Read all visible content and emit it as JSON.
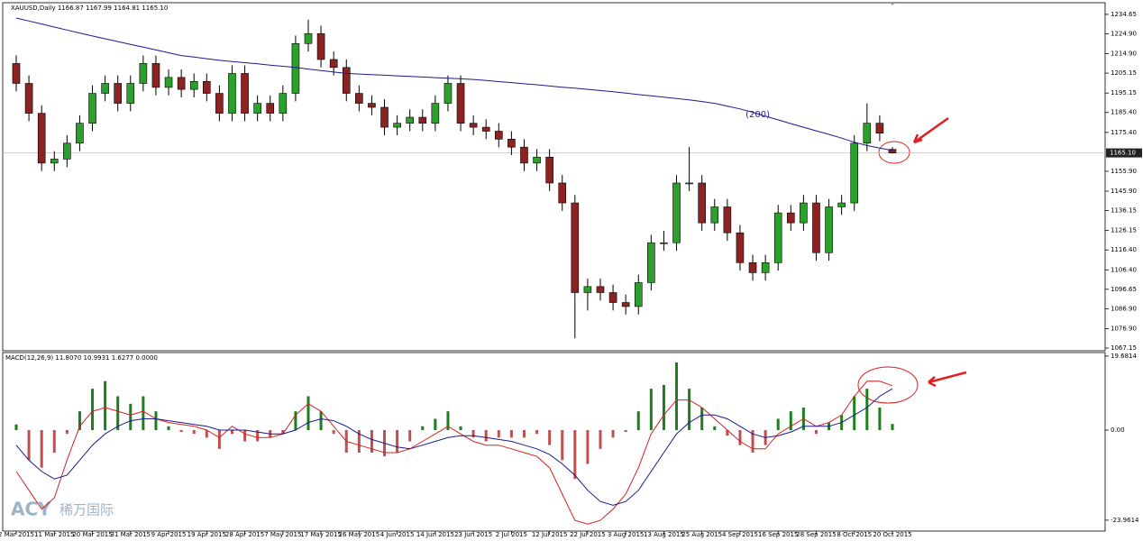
{
  "chart_data": [
    {
      "type": "candlestick",
      "title": "XAUUSD,Daily  1166.87 1167.99 1164.81 1165.10",
      "open": [
        1210,
        1200,
        1185,
        1160,
        1162,
        1170,
        1180,
        1195,
        1200,
        1190,
        1200,
        1210,
        1198,
        1203,
        1197,
        1201,
        1195,
        1185,
        1205,
        1185,
        1190,
        1185,
        1195,
        1220,
        1225,
        1212,
        1208,
        1195,
        1190,
        1188,
        1178,
        1180,
        1183,
        1180,
        1190,
        1200,
        1180,
        1178,
        1176,
        1172,
        1168,
        1160,
        1163,
        1150,
        1140,
        1095,
        1098,
        1095,
        1090,
        1088,
        1100,
        1120,
        1120,
        1150,
        1150,
        1130,
        1138,
        1125,
        1110,
        1105,
        1110,
        1135,
        1130,
        1140,
        1115,
        1138,
        1140,
        1170,
        1180,
        1166.87
      ],
      "high": [
        1214,
        1204,
        1189,
        1166,
        1174,
        1184,
        1199,
        1204,
        1204,
        1204,
        1214,
        1214,
        1207,
        1207,
        1205,
        1205,
        1199,
        1209,
        1209,
        1194,
        1194,
        1199,
        1224,
        1232,
        1229,
        1216,
        1212,
        1199,
        1194,
        1192,
        1184,
        1187,
        1187,
        1194,
        1204,
        1204,
        1184,
        1182,
        1180,
        1176,
        1172,
        1167,
        1167,
        1154,
        1144,
        1102,
        1102,
        1099,
        1094,
        1104,
        1124,
        1126,
        1154,
        1168,
        1154,
        1142,
        1142,
        1129,
        1114,
        1114,
        1139,
        1139,
        1144,
        1144,
        1142,
        1144,
        1174,
        1190,
        1184,
        1167.99
      ],
      "low": [
        1196,
        1181,
        1156,
        1156,
        1158,
        1166,
        1176,
        1191,
        1186,
        1186,
        1196,
        1194,
        1194,
        1193,
        1193,
        1191,
        1181,
        1181,
        1181,
        1181,
        1181,
        1181,
        1191,
        1216,
        1208,
        1204,
        1191,
        1186,
        1184,
        1174,
        1174,
        1176,
        1176,
        1176,
        1186,
        1176,
        1174,
        1172,
        1168,
        1164,
        1156,
        1156,
        1146,
        1136,
        1072,
        1086,
        1091,
        1086,
        1084,
        1084,
        1096,
        1116,
        1116,
        1146,
        1126,
        1126,
        1121,
        1106,
        1101,
        1101,
        1106,
        1126,
        1126,
        1111,
        1111,
        1134,
        1136,
        1166,
        1171,
        1164.81
      ],
      "close": [
        1200,
        1185,
        1160,
        1162,
        1170,
        1180,
        1195,
        1200,
        1190,
        1200,
        1210,
        1198,
        1203,
        1197,
        1201,
        1195,
        1185,
        1205,
        1185,
        1190,
        1185,
        1195,
        1220,
        1225,
        1212,
        1208,
        1195,
        1190,
        1188,
        1178,
        1180,
        1183,
        1180,
        1190,
        1200,
        1180,
        1178,
        1176,
        1172,
        1168,
        1160,
        1163,
        1150,
        1140,
        1095,
        1098,
        1095,
        1090,
        1088,
        1100,
        1120,
        1120,
        1150,
        1150,
        1130,
        1138,
        1125,
        1110,
        1105,
        1110,
        1135,
        1130,
        1140,
        1115,
        1138,
        1140,
        1170,
        1180,
        1175,
        1165.1
      ],
      "up_color": "#2ca02c",
      "down_color": "#8b2323",
      "ma": {
        "name": "(200)",
        "color": "#1a1a8c",
        "values": [
          1232.8,
          1231.3,
          1229.8,
          1228.3,
          1226.8,
          1225.3,
          1223.8,
          1222.4,
          1221.0,
          1219.6,
          1218.2,
          1216.8,
          1215.4,
          1214.0,
          1213.2,
          1212.4,
          1211.6,
          1211.0,
          1210.4,
          1209.8,
          1209.2,
          1208.6,
          1208.0,
          1207.2,
          1206.4,
          1205.7,
          1205.0,
          1204.7,
          1204.4,
          1204.1,
          1203.8,
          1203.5,
          1203.2,
          1202.9,
          1202.6,
          1202.3,
          1202.0,
          1201.5,
          1200.9,
          1200.4,
          1199.8,
          1199.3,
          1198.7,
          1198.1,
          1197.6,
          1197.0,
          1196.4,
          1195.8,
          1195.1,
          1194.4,
          1193.8,
          1193.1,
          1192.4,
          1191.7,
          1190.9,
          1190.0,
          1188.6,
          1187.2,
          1185.5,
          1183.5,
          1181.7,
          1179.8,
          1178.0,
          1176.2,
          1174.4,
          1172.5,
          1170.5,
          1168.8,
          1167.5,
          1166.3
        ]
      },
      "current_price": {
        "value": 1165.1,
        "label": "1165.10"
      },
      "ylim": [
        1065.8,
        1240.5
      ],
      "yticks": [
        1234.65,
        {
          "value": 1224.9,
          "label": "1224.90"
        },
        {
          "value": 1214.9,
          "label": "1214.90"
        },
        1205.15,
        1195.15,
        {
          "value": 1185.4,
          "label": "1185.40"
        },
        {
          "value": 1175.4,
          "label": "1175.40"
        },
        {
          "value": 1155.9,
          "label": "1155.90"
        },
        {
          "value": 1145.9,
          "label": "1145.90"
        },
        1136.15,
        1126.15,
        {
          "value": 1116.4,
          "label": "1116.40"
        },
        {
          "value": 1106.4,
          "label": "1106.40"
        },
        1096.65,
        {
          "value": 1086.9,
          "label": "1086.90"
        },
        {
          "value": 1076.9,
          "label": "1076.90"
        },
        1067.15
      ]
    },
    {
      "type": "macd",
      "title": "MACD(12,26,9) 11.8070 10.9931 1.6277 0.0000",
      "categories": [
        "2 Mar 2015",
        null,
        null,
        "11 Mar 2015",
        null,
        null,
        "20 Mar 2015",
        null,
        null,
        "31 Mar 2015",
        null,
        null,
        "9 Apr 2015",
        null,
        null,
        "19 Apr 2015",
        null,
        null,
        "28 Apr 2015",
        null,
        null,
        "7 May 2015",
        null,
        null,
        "17 May 2015",
        null,
        null,
        "26 May 2015",
        null,
        null,
        "4 Jun 2015",
        null,
        null,
        "14 Jun 2015",
        null,
        null,
        "23 Jun 2015",
        null,
        null,
        "2 Jul 2015",
        null,
        null,
        "12 Jul 2015",
        null,
        null,
        "22 Jul 2015",
        null,
        null,
        "3 Aug 2015",
        null,
        null,
        "13 Aug 2015",
        null,
        null,
        "25 Aug 2015",
        null,
        null,
        "4 Sep 2015",
        null,
        null,
        "16 Sep 2015",
        null,
        null,
        "28 Sep 2015",
        null,
        null,
        "8 Oct 2015",
        null,
        null,
        "20 Oct 2015"
      ],
      "histogram": {
        "up_color": "#1e7d1e",
        "down_color": "#c0504d",
        "values": [
          1.5,
          -8,
          -10,
          -6,
          -1,
          5,
          11,
          13,
          9,
          7,
          9,
          5,
          1,
          -0.5,
          -1,
          -2,
          -5,
          -1,
          -3,
          -3,
          -2,
          -1,
          5,
          9,
          5,
          -1,
          -6,
          -6,
          -6,
          -7,
          -6,
          -3,
          1,
          3,
          5,
          1,
          -2,
          -3,
          -2,
          -2,
          -2,
          -1,
          -4,
          -8,
          -13,
          -9,
          -5,
          -2,
          -0.5,
          5,
          11,
          12,
          18,
          11,
          6,
          1,
          -1.5,
          -4,
          -6,
          -4,
          3,
          5,
          6,
          -1,
          2,
          4,
          9,
          11,
          6,
          1.6277
        ]
      },
      "macd_line": {
        "color": "#d62020",
        "values": [
          -11,
          -16,
          -21,
          -18,
          -8,
          1,
          5,
          6,
          5,
          4,
          5,
          3,
          2,
          1.5,
          1,
          0,
          -2,
          1,
          -1,
          -2,
          -2,
          -1,
          4,
          7,
          5,
          1,
          -3,
          -4,
          -5,
          -6,
          -6,
          -5,
          -3,
          -1,
          1,
          -1,
          -3,
          -4,
          -4,
          -5,
          -6,
          -7,
          -10,
          -17,
          -24,
          -25,
          -24,
          -21,
          -17,
          -10,
          -1,
          4,
          8,
          8,
          6,
          3,
          0,
          -3,
          -5,
          -5,
          -1,
          1,
          3,
          1,
          2,
          4,
          9,
          13,
          13,
          11.807
        ]
      },
      "signal_line": {
        "color": "#1a1a8c",
        "values": [
          -4,
          -8,
          -11,
          -13,
          -12,
          -8,
          -4,
          -1,
          1,
          2.5,
          3,
          3,
          2.5,
          2,
          1.5,
          1,
          0,
          0,
          0,
          -0.5,
          -1,
          -1,
          0,
          2,
          3,
          2.5,
          1,
          -1,
          -2.5,
          -3.5,
          -4.5,
          -5,
          -4,
          -3,
          -2,
          -1.5,
          -1.5,
          -2,
          -2.5,
          -3,
          -4,
          -5,
          -6.5,
          -9,
          -12,
          -16,
          -19,
          -20,
          -19,
          -16,
          -11,
          -6,
          -1,
          2,
          4,
          4,
          3,
          1,
          -1,
          -2,
          -1.5,
          -0.5,
          1,
          1,
          1,
          2,
          4,
          6,
          9,
          10.9931
        ]
      },
      "ylim": [
        -26.86,
        20.62
      ],
      "yticks": [
        19.6814,
        {
          "value": 0,
          "label": "0.00"
        },
        -23.9614
      ]
    }
  ],
  "watermark": [
    "ACY",
    "稀万国际"
  ]
}
